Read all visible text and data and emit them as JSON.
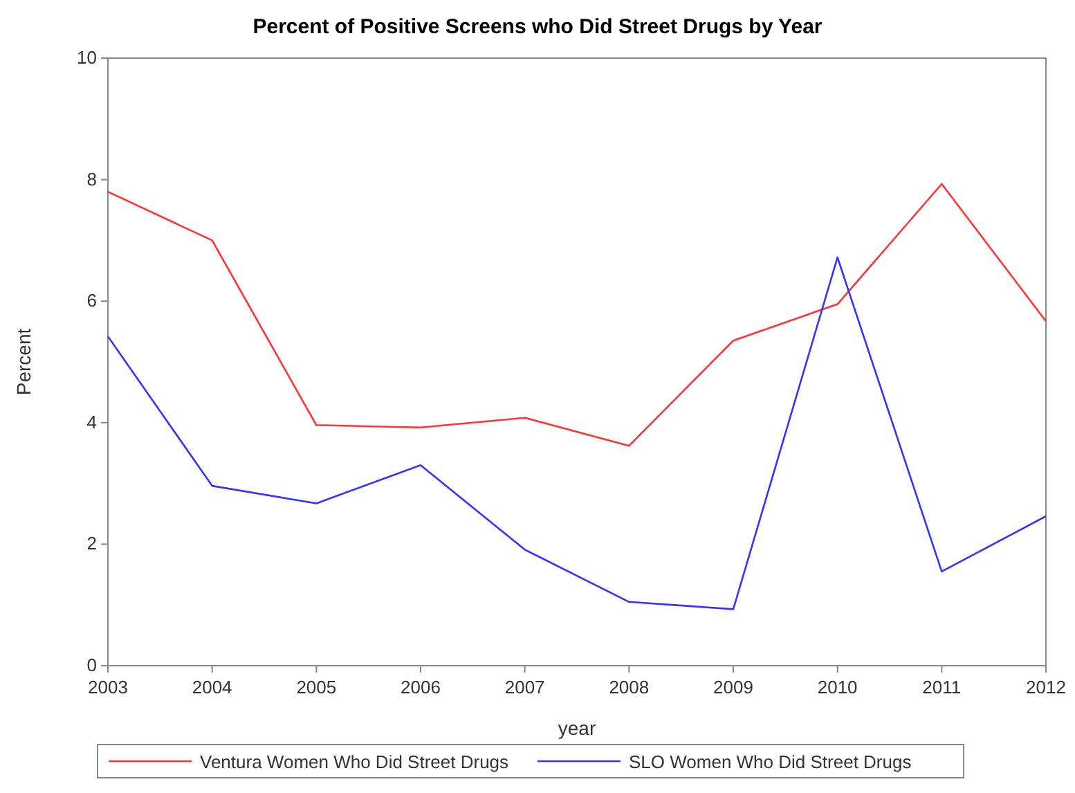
{
  "chart_data": {
    "type": "line",
    "title": "Percent of Positive Screens who Did Street Drugs by Year",
    "xlabel": "year",
    "ylabel": "Percent",
    "x": [
      2003,
      2004,
      2005,
      2006,
      2007,
      2008,
      2009,
      2010,
      2011,
      2012
    ],
    "xlim": [
      2003,
      2012
    ],
    "xticks": [
      2003,
      2004,
      2005,
      2006,
      2007,
      2008,
      2009,
      2010,
      2011,
      2012
    ],
    "ylim": [
      0,
      10
    ],
    "yticks": [
      0,
      2,
      4,
      6,
      8,
      10
    ],
    "grid": false,
    "legend": "bottom",
    "marker": "none",
    "line_style": "solid",
    "series": [
      {
        "name": "Ventura Women Who Did Street Drugs",
        "color": "#ff3333",
        "values": [
          7.8,
          7.0,
          3.96,
          3.92,
          4.08,
          3.62,
          5.35,
          5.95,
          7.93,
          5.67
        ]
      },
      {
        "name": "SLO Women Who Did Street Drugs",
        "color": "#3333ff",
        "values": [
          5.42,
          2.96,
          2.67,
          3.3,
          1.91,
          1.05,
          0.93,
          6.72,
          1.55,
          2.46
        ]
      }
    ]
  }
}
